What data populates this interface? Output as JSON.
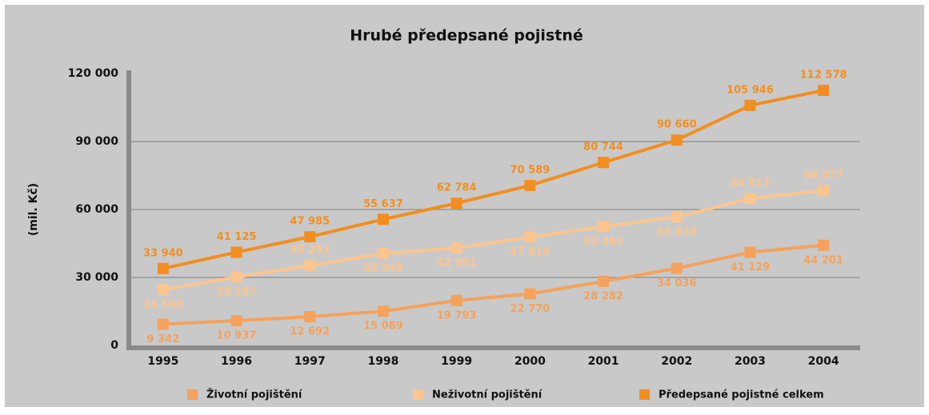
{
  "chart_data": {
    "type": "line",
    "title": "Hrubé předepsané pojistné",
    "y_label": "(mil. Kč)",
    "categories": [
      "1995",
      "1996",
      "1997",
      "1998",
      "1999",
      "2000",
      "2001",
      "2002",
      "2003",
      "2004"
    ],
    "series": [
      {
        "name": "Životní pojištění",
        "color": "#f5a25c",
        "values": [
          9342,
          10937,
          12692,
          15089,
          19793,
          22770,
          28282,
          34036,
          41129,
          44201
        ],
        "value_labels": [
          "9 342",
          "10 937",
          "12 692",
          "15 089",
          "19 793",
          "22 770",
          "28 282",
          "34 036",
          "41 129",
          "44 201"
        ]
      },
      {
        "name": "Neživotní pojištění",
        "color": "#fbc58f",
        "values": [
          24598,
          30187,
          35292,
          40548,
          42991,
          47819,
          52462,
          56624,
          64817,
          68377
        ],
        "value_labels": [
          "24 598",
          "30 187",
          "35 292",
          "40 548",
          "42 991",
          "47 819",
          "52 462",
          "56 624",
          "64 817",
          "68 377"
        ]
      },
      {
        "name": "Předepsané pojistné celkem",
        "color": "#f28e1f",
        "values": [
          33940,
          41125,
          47985,
          55637,
          62784,
          70589,
          80744,
          90660,
          105946,
          112578
        ],
        "value_labels": [
          "33 940",
          "41 125",
          "47 985",
          "55 637",
          "62 784",
          "70 589",
          "80 744",
          "90 660",
          "105 946",
          "112 578"
        ]
      }
    ],
    "ylim": [
      0,
      120000
    ],
    "yticks": [
      0,
      {
        "value": 30000,
        "label": "30 000"
      },
      {
        "value": 60000,
        "label": "60 000"
      },
      {
        "value": 90000,
        "label": "90 000"
      },
      {
        "value": 120000,
        "label": "120 000"
      }
    ],
    "grid": true
  }
}
